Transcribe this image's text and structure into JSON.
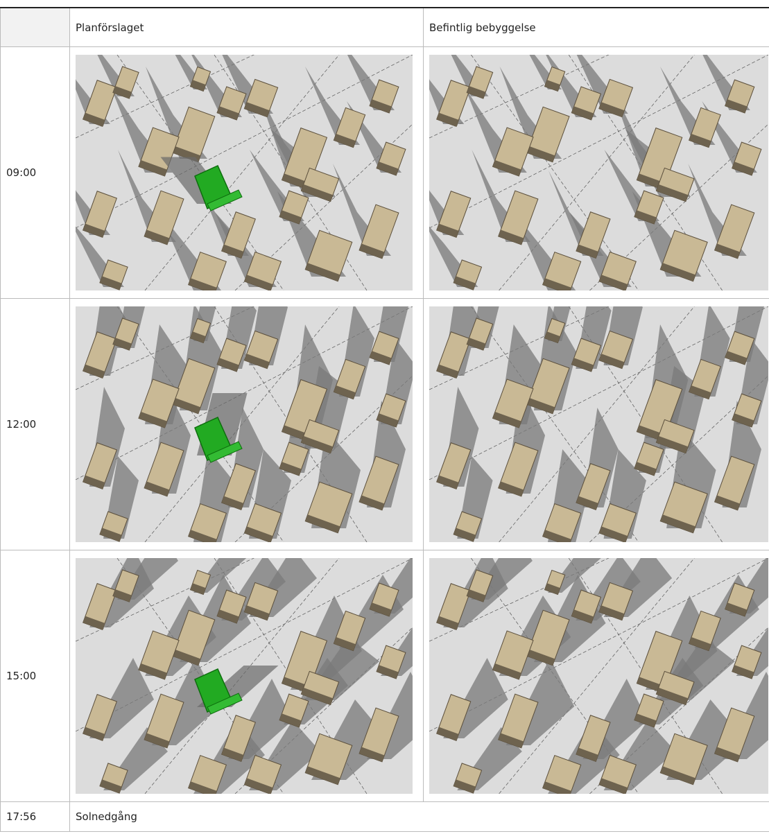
{
  "header": {
    "col1": "Planförslaget",
    "col2": "Befintlig bebyggelse"
  },
  "rows": [
    {
      "time": "09:00"
    },
    {
      "time": "12:00"
    },
    {
      "time": "15:00"
    }
  ],
  "footer": {
    "time": "17:56",
    "note": "Solnedgång"
  }
}
